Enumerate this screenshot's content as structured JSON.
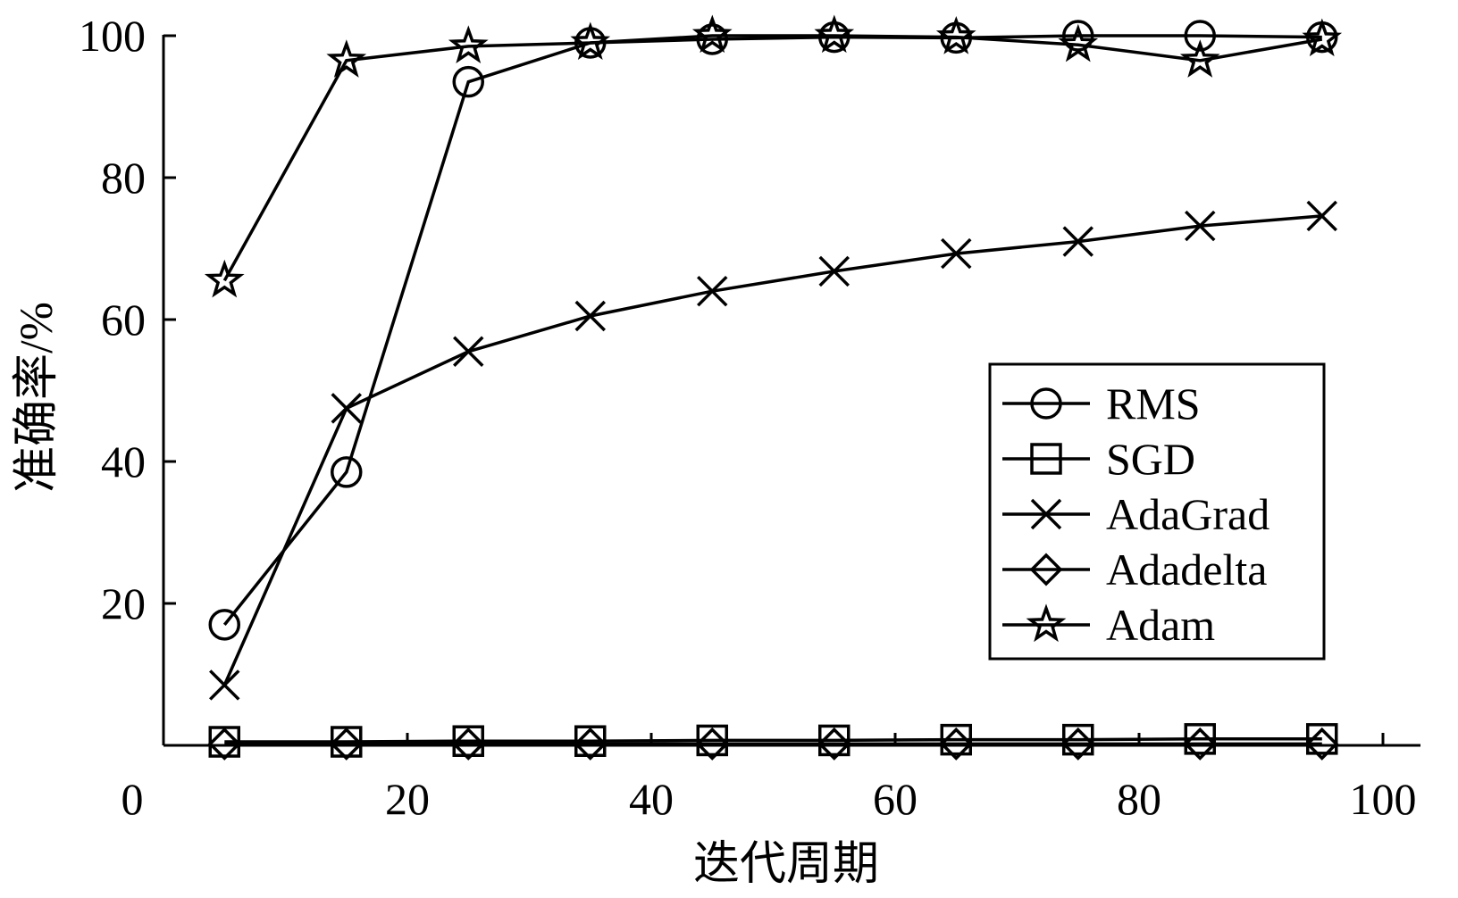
{
  "chart_data": {
    "type": "line",
    "xlabel": "迭代周期",
    "ylabel": "准确率/%",
    "xlim": [
      0,
      100
    ],
    "ylim": [
      0,
      100
    ],
    "x_ticks": [
      0,
      20,
      40,
      60,
      80,
      100
    ],
    "y_ticks": [
      20,
      40,
      60,
      80,
      100
    ],
    "x": [
      5,
      15,
      25,
      35,
      45,
      55,
      65,
      75,
      85,
      95
    ],
    "legend_position": "center-right",
    "grid": false,
    "series": [
      {
        "name": "RMS",
        "marker": "circle",
        "values": [
          17,
          38.5,
          93.5,
          99,
          99.5,
          99.8,
          99.7,
          100,
          100,
          99.8
        ]
      },
      {
        "name": "SGD",
        "marker": "square",
        "values": [
          0.5,
          0.5,
          0.6,
          0.6,
          0.7,
          0.7,
          0.8,
          0.8,
          0.9,
          0.9
        ]
      },
      {
        "name": "AdaGrad",
        "marker": "x",
        "values": [
          8.5,
          47.5,
          55.5,
          60.5,
          64,
          66.8,
          69.3,
          71,
          73.2,
          74.6
        ]
      },
      {
        "name": "Adadelta",
        "marker": "diamond",
        "values": [
          0.2,
          0.2,
          0.2,
          0.2,
          0.2,
          0.2,
          0.2,
          0.2,
          0.2,
          0.2
        ]
      },
      {
        "name": "Adam",
        "marker": "star",
        "values": [
          65.5,
          96.5,
          98.5,
          99,
          100,
          100,
          99.8,
          98.7,
          96.5,
          99.5
        ]
      }
    ]
  }
}
